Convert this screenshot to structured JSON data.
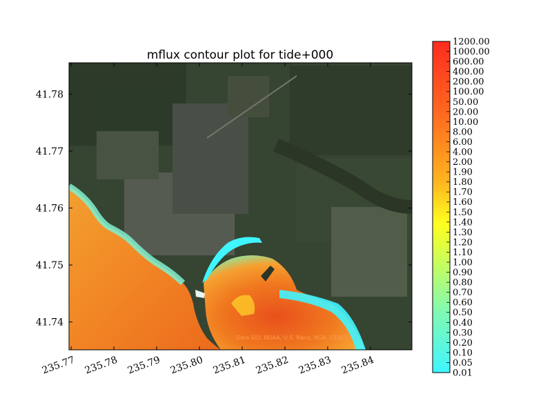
{
  "chart_data": {
    "type": "heatmap",
    "title": "mflux contour plot for tide+000",
    "xlabel": "",
    "ylabel": "",
    "xlim": [
      235.7695,
      235.8497
    ],
    "ylim": [
      41.7351,
      41.7855
    ],
    "x_ticks": [
      "235.77",
      "235.78",
      "235.79",
      "235.80",
      "235.81",
      "235.82",
      "235.83",
      "235.84"
    ],
    "x_tick_values": [
      235.77,
      235.78,
      235.79,
      235.8,
      235.81,
      235.82,
      235.83,
      235.84
    ],
    "y_ticks": [
      "41.74",
      "41.75",
      "41.76",
      "41.77",
      "41.78"
    ],
    "y_tick_values": [
      41.74,
      41.75,
      41.76,
      41.77,
      41.78
    ],
    "colorbar": {
      "levels": [
        "0.01",
        "0.05",
        "0.10",
        "0.20",
        "0.30",
        "0.40",
        "0.50",
        "0.60",
        "0.70",
        "0.80",
        "0.90",
        "1.00",
        "1.10",
        "1.20",
        "1.30",
        "1.40",
        "1.50",
        "1.60",
        "1.70",
        "1.80",
        "1.90",
        "2.00",
        "4.00",
        "6.00",
        "8.00",
        "10.00",
        "20.00",
        "50.00",
        "100.00",
        "200.00",
        "400.00",
        "600.00",
        "1000.00",
        "1200.00"
      ],
      "colors": [
        "#3ff5ff",
        "#4ff6ec",
        "#5ff7d9",
        "#6ff8c6",
        "#7ff9b3",
        "#8ffaa0",
        "#9ffb8d",
        "#affc7a",
        "#bffd67",
        "#cffd54",
        "#dffe41",
        "#effe2e",
        "#ffff1f",
        "#ffec1f",
        "#ffd91f",
        "#ffc61f",
        "#ffb31f",
        "#ffa01f",
        "#ff8d1f",
        "#ff7a1f",
        "#ff671f",
        "#ff541f",
        "#ff4a1f",
        "#ff401f",
        "#ff361f",
        "#ff2c1f"
      ]
    },
    "basemap_credit": "Data SIO, NOAA, U.S. Navy, NGA, GEBCO",
    "grid": false
  },
  "colors": {
    "land_dark": "#2d3a2a",
    "land_mid": "#3f4d3a",
    "water_high": "#f07a20",
    "water_low": "#3ff5ff"
  }
}
